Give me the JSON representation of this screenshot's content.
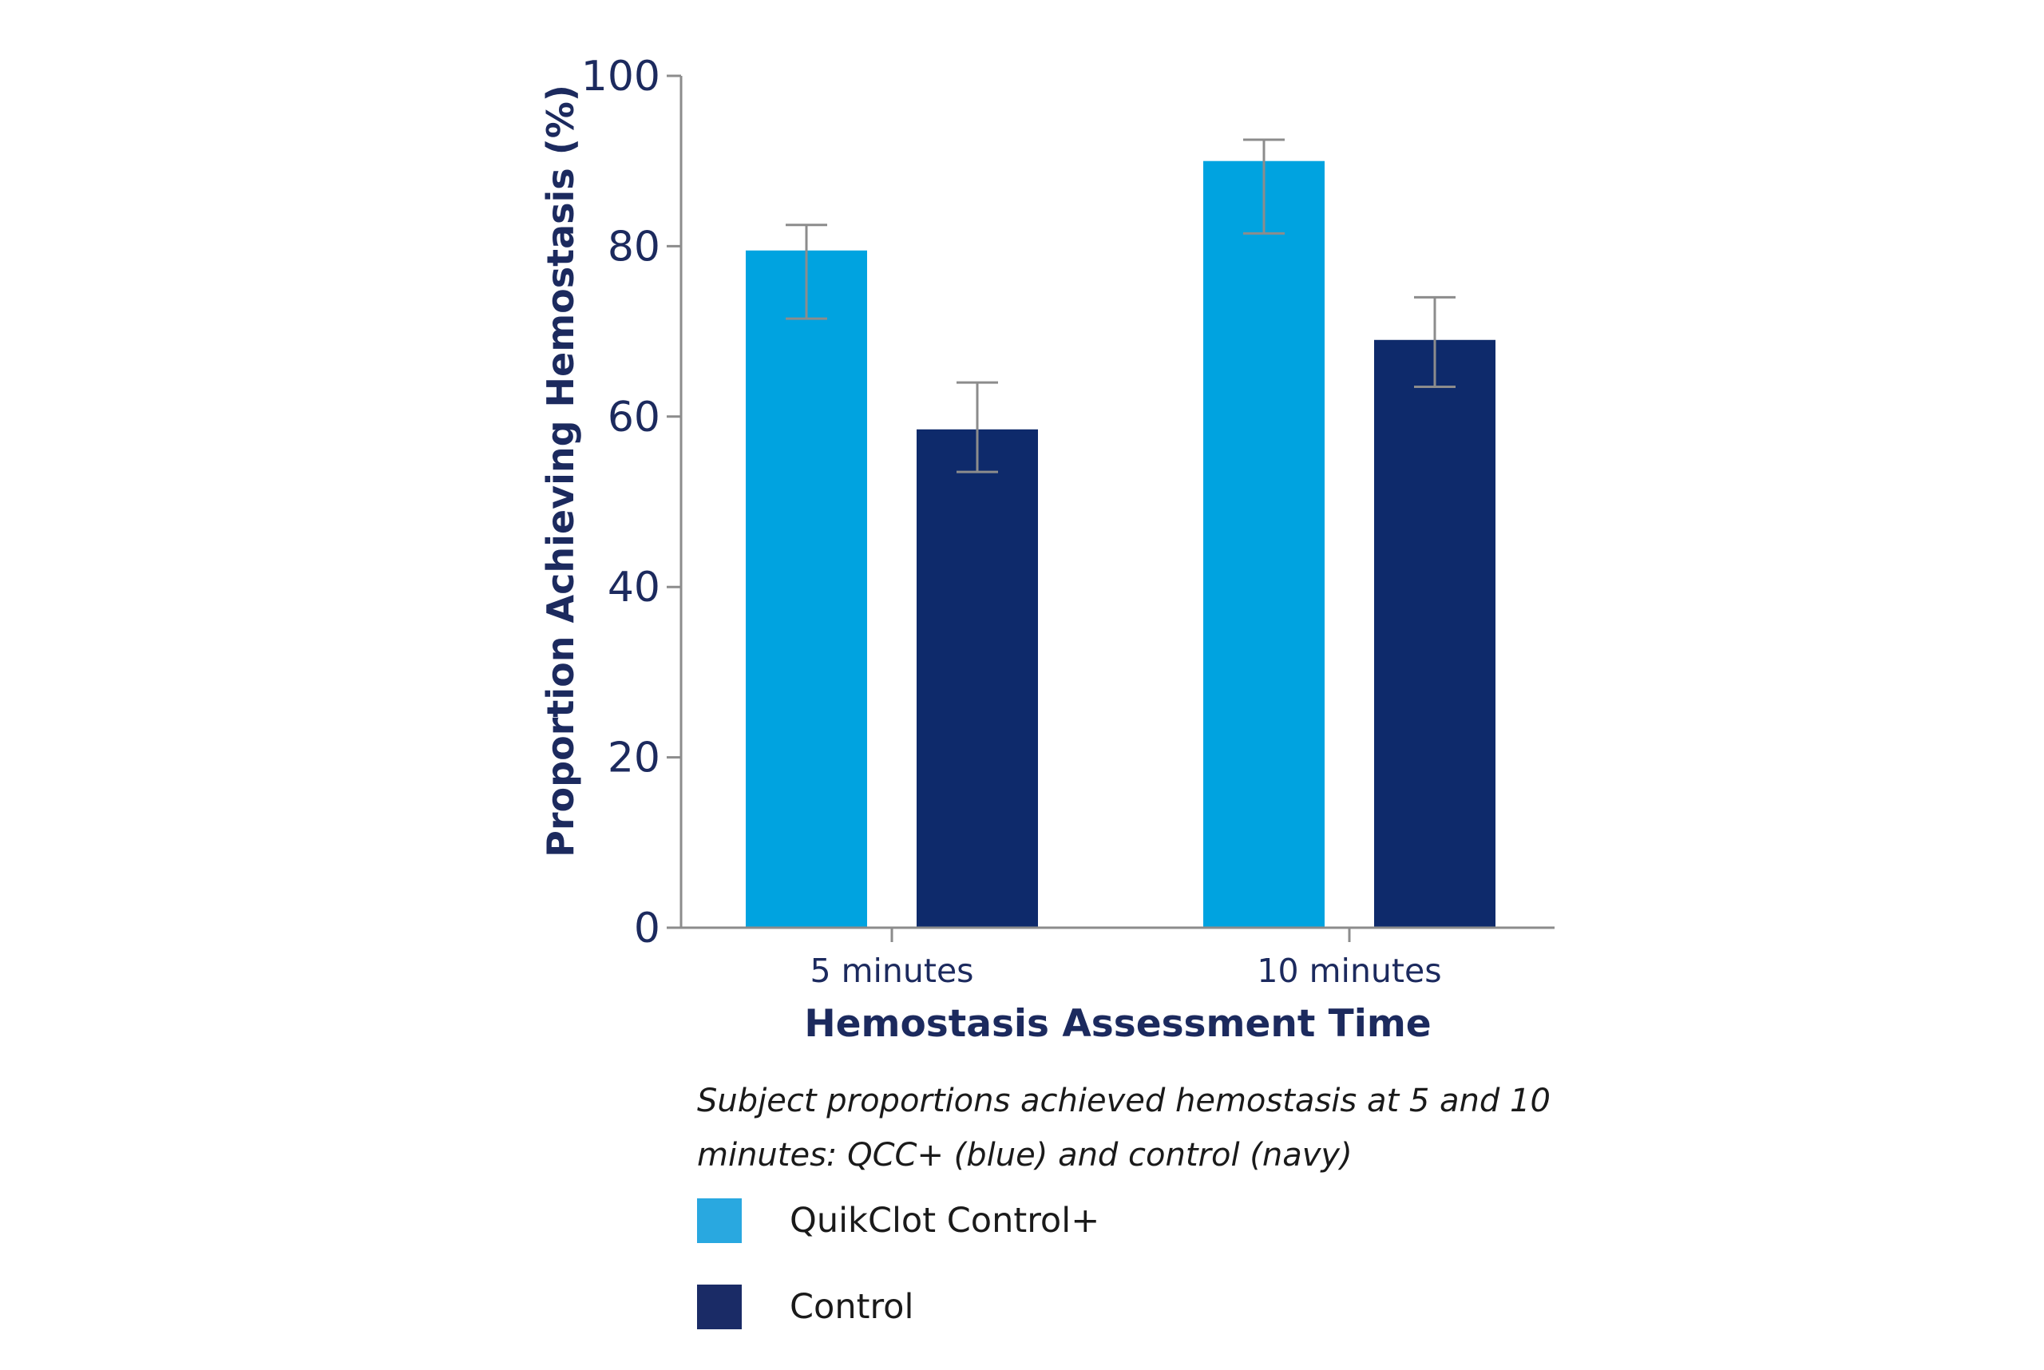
{
  "chart_data": {
    "type": "bar",
    "categories": [
      "5 minutes",
      "10 minutes"
    ],
    "series": [
      {
        "name": "QuikClot Control+",
        "color": "#00A3E0",
        "values": [
          79.5,
          90
        ],
        "error_low": [
          71.5,
          81.5
        ],
        "error_high": [
          82.5,
          92.5
        ]
      },
      {
        "name": "Control",
        "color": "#0E2A6B",
        "values": [
          58.5,
          69
        ],
        "error_low": [
          53.5,
          63.5
        ],
        "error_high": [
          64,
          74
        ]
      }
    ],
    "xlabel": "Hemostasis Assessment Time",
    "ylabel": "Proportion Achieving Hemostasis (%)",
    "ylim": [
      0,
      100
    ],
    "yticks": [
      0,
      20,
      40,
      60,
      80,
      100
    ],
    "grid": false,
    "legend_position": "bottom-left",
    "colors": {
      "axis": "#8C8C8C",
      "text": "#1C2A5E",
      "error_bar": "#8C8C8C"
    }
  },
  "caption": "Subject proportions achieved hemostasis at 5 and 10 minutes: QCC+ (blue) and control (navy)",
  "legend": [
    {
      "label": "QuikClot Control+",
      "color": "#29A8E0"
    },
    {
      "label": "Control",
      "color": "#1A2B66"
    }
  ]
}
